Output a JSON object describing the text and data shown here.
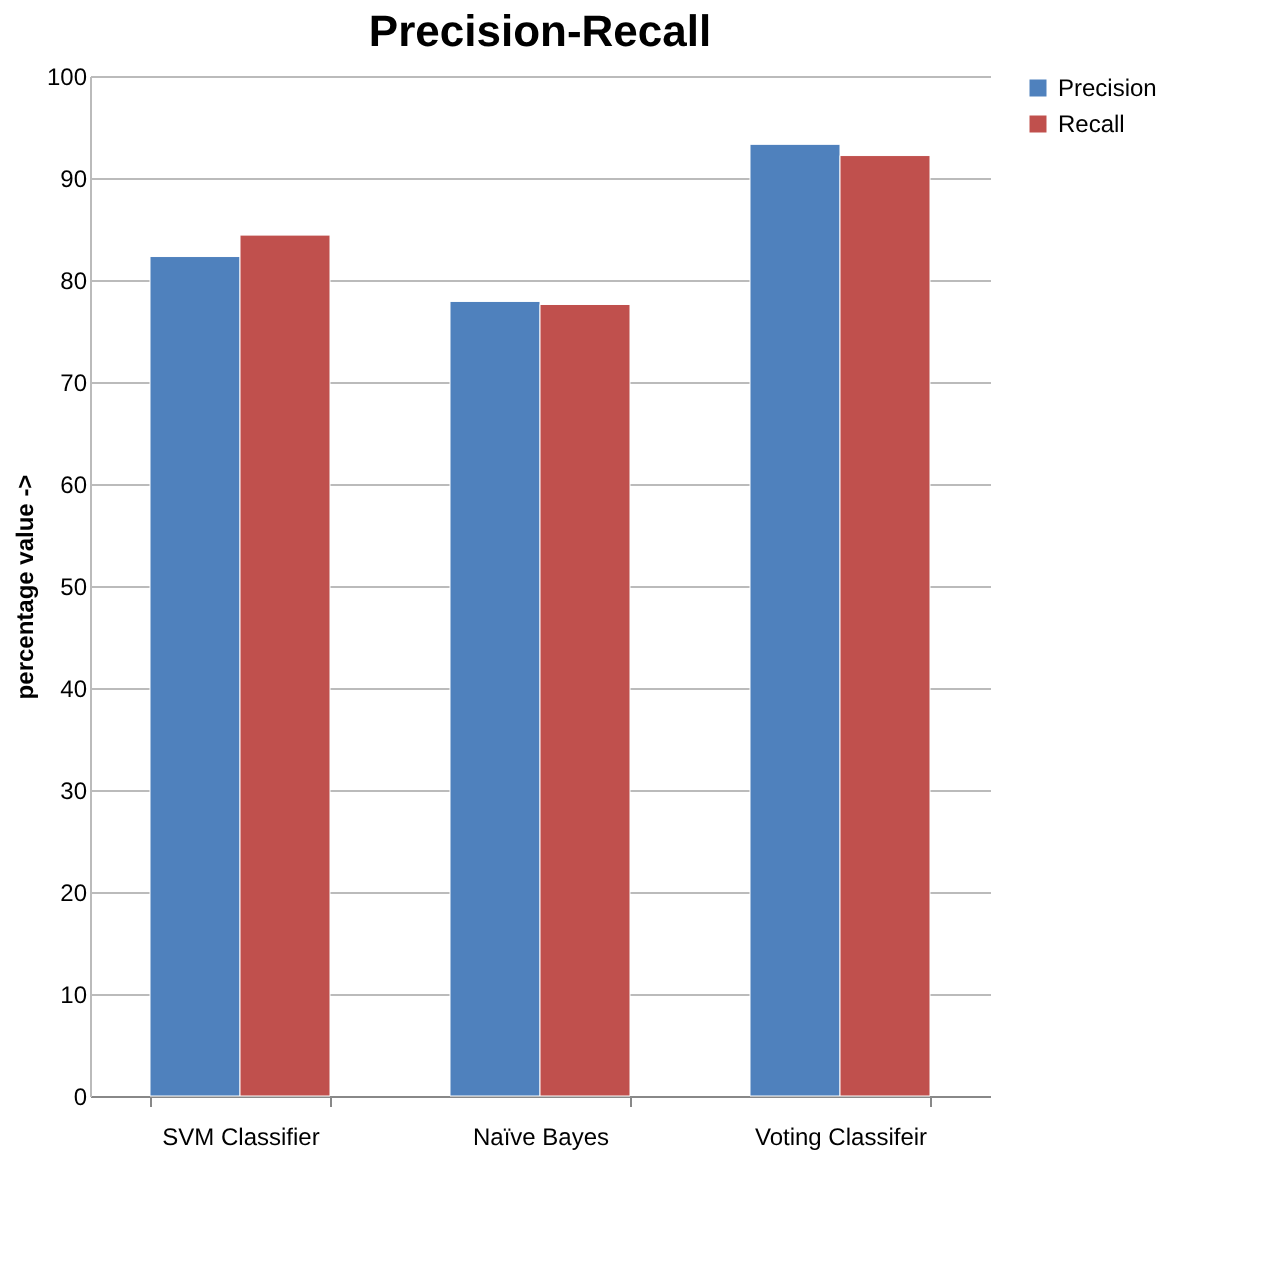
{
  "chart_data": {
    "type": "bar",
    "title": "Precision-Recall",
    "ylabel": "percentage value ->",
    "categories": [
      "SVM Classifier",
      "Naïve Bayes",
      "Voting Classifeir"
    ],
    "series": [
      {
        "name": "Precision",
        "color": "#4f81bd",
        "values": [
          82.3,
          77.9,
          93.3
        ]
      },
      {
        "name": "Recall",
        "color": "#c0504d",
        "values": [
          84.4,
          77.6,
          92.2
        ]
      }
    ],
    "ylim": [
      0,
      100
    ],
    "yticks": [
      0,
      10,
      20,
      30,
      40,
      50,
      60,
      70,
      80,
      90,
      100
    ],
    "grid": "y",
    "legend": "right"
  }
}
